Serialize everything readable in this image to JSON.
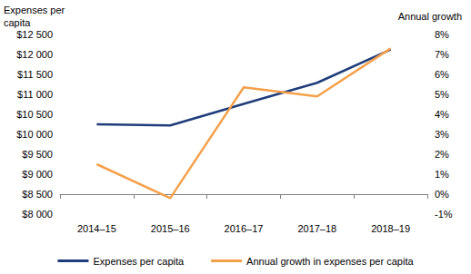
{
  "chart_data": {
    "type": "line",
    "y_label": "Expenses per capita",
    "y2_label": "Annual growth",
    "categories": [
      "2014–15",
      "2015–16",
      "2016–17",
      "2017–18",
      "2018–19"
    ],
    "series": [
      {
        "name": "Expenses per capita",
        "color": "#1f3d7a",
        "values": [
          10250,
          10220,
          10760,
          11290,
          12120
        ]
      },
      {
        "name": "Annual growth in expenses per capita",
        "color": "#f5a04a",
        "axis": "y2",
        "values": [
          1.5,
          -0.2,
          5.35,
          4.9,
          7.3
        ]
      }
    ],
    "ylim": [
      8000,
      12500
    ],
    "yticks": [
      {
        "value": 8000,
        "label": "$8 000"
      },
      {
        "value": 8500,
        "label": "$8 500"
      },
      {
        "value": 9000,
        "label": "$9 000"
      },
      {
        "value": 9500,
        "label": "$9 500"
      },
      {
        "value": 10000,
        "label": "$10 000"
      },
      {
        "value": 10500,
        "label": "$10 500"
      },
      {
        "value": 11000,
        "label": "$11 000"
      },
      {
        "value": 11500,
        "label": "$11 500"
      },
      {
        "value": 12000,
        "label": "$12 000"
      },
      {
        "value": 12500,
        "label": "$12 500"
      }
    ],
    "y2lim": [
      -1,
      8
    ],
    "y2ticks": [
      {
        "value": -1,
        "label": "-1%"
      },
      {
        "value": 0,
        "label": "0%"
      },
      {
        "value": 1,
        "label": "1%"
      },
      {
        "value": 2,
        "label": "2%"
      },
      {
        "value": 3,
        "label": "3%"
      },
      {
        "value": 4,
        "label": "4%"
      },
      {
        "value": 5,
        "label": "5%"
      },
      {
        "value": 6,
        "label": "6%"
      },
      {
        "value": 7,
        "label": "7%"
      },
      {
        "value": 8,
        "label": "8%"
      }
    ],
    "grid": false,
    "legend": "bottom"
  }
}
